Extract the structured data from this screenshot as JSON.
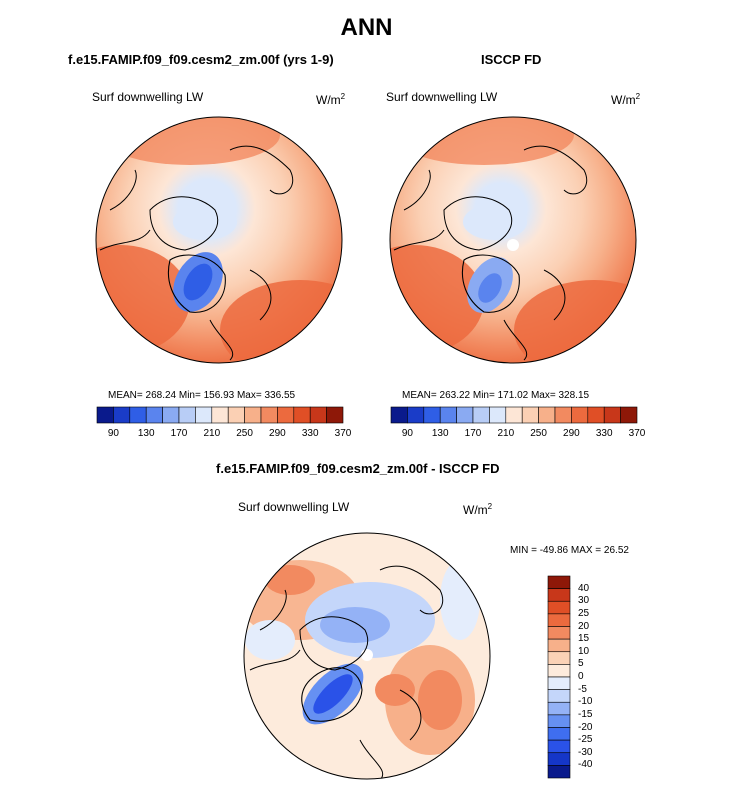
{
  "figure": {
    "title": "ANN"
  },
  "panels": {
    "model": {
      "title": "f.e15.FAMIP.f09_f09.cesm2_zm.00f (yrs 1-9)",
      "variable": "Surf downwelling LW",
      "units_base": "W/m",
      "units_exp": "2",
      "stats_text": "MEAN= 268.24  Min= 156.93  Max= 336.55"
    },
    "obs": {
      "title": "ISCCP FD",
      "variable": "Surf downwelling LW",
      "units_base": "W/m",
      "units_exp": "2",
      "stats_text": "MEAN= 263.22  Min= 171.02  Max= 328.15"
    },
    "diff": {
      "title": "f.e15.FAMIP.f09_f09.cesm2_zm.00f - ISCCP FD",
      "variable": "Surf downwelling LW",
      "units_base": "W/m",
      "units_exp": "2",
      "stats_text": "MIN = -49.86 MAX =  26.52"
    }
  },
  "colors": {
    "abs_scale": [
      "#0a1a8c",
      "#1a3cc8",
      "#2f5ee6",
      "#5a84ee",
      "#8aaaf2",
      "#b8cdf6",
      "#dce8fb",
      "#fde6d6",
      "#fbd0b4",
      "#f7b08a",
      "#f28a60",
      "#ec6a3e",
      "#e04f26",
      "#c8371a",
      "#8e1808"
    ],
    "diff_scale": [
      "#0a1a8c",
      "#1536c8",
      "#2a52e8",
      "#3f6ef0",
      "#6690f2",
      "#94b2f6",
      "#c4d6fa",
      "#e4edfc",
      "#fdebdc",
      "#fbd2b6",
      "#f7b08a",
      "#f28a60",
      "#ec6a3e",
      "#e04f26",
      "#c8371a",
      "#8e1808"
    ]
  },
  "chart_data": [
    {
      "type": "heatmap",
      "title": "f.e15.FAMIP.f09_f09.cesm2_zm.00f (yrs 1-9)",
      "variable": "Surf downwelling LW",
      "units": "W/m2",
      "projection": "north polar stereographic",
      "stats": {
        "mean": 268.24,
        "min": 156.93,
        "max": 336.55
      },
      "colorbar_levels": [
        90,
        110,
        130,
        150,
        170,
        190,
        210,
        230,
        250,
        270,
        290,
        310,
        330,
        350,
        370
      ],
      "colorbar_tick_labels": [
        "90",
        "130",
        "170",
        "210",
        "250",
        "290",
        "330",
        "370"
      ]
    },
    {
      "type": "heatmap",
      "title": "ISCCP FD",
      "variable": "Surf downwelling LW",
      "units": "W/m2",
      "projection": "north polar stereographic",
      "stats": {
        "mean": 263.22,
        "min": 171.02,
        "max": 328.15
      },
      "colorbar_levels": [
        90,
        110,
        130,
        150,
        170,
        190,
        210,
        230,
        250,
        270,
        290,
        310,
        330,
        350,
        370
      ],
      "colorbar_tick_labels": [
        "90",
        "130",
        "170",
        "210",
        "250",
        "290",
        "330",
        "370"
      ]
    },
    {
      "type": "heatmap",
      "title": "f.e15.FAMIP.f09_f09.cesm2_zm.00f - ISCCP FD",
      "variable": "Surf downwelling LW",
      "units": "W/m2",
      "projection": "north polar stereographic",
      "stats": {
        "min": -49.86,
        "max": 26.52
      },
      "colorbar_levels": [
        -40,
        -30,
        -25,
        -20,
        -15,
        -10,
        -5,
        0,
        5,
        10,
        15,
        20,
        25,
        30,
        40
      ],
      "colorbar_tick_labels": [
        "40",
        "30",
        "25",
        "20",
        "15",
        "10",
        "5",
        "0",
        "-5",
        "-10",
        "-15",
        "-20",
        "-25",
        "-30",
        "-40"
      ]
    }
  ]
}
